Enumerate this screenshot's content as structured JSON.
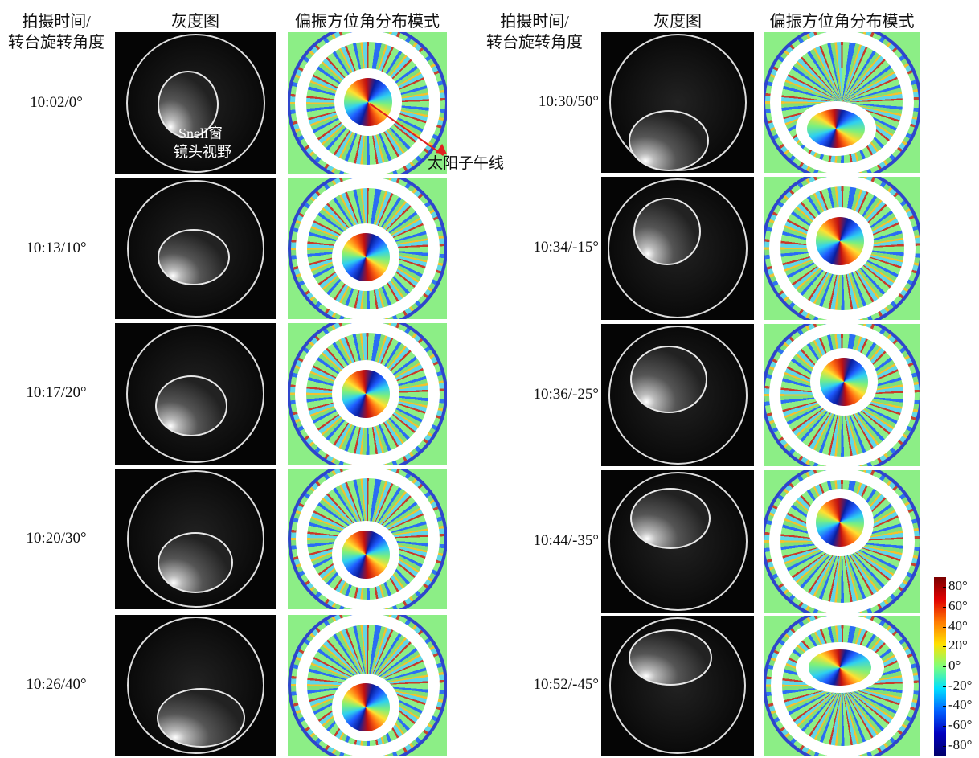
{
  "figure": {
    "groups": [
      {
        "headers": {
          "label_line1": "拍摄时间/",
          "label_line2": "转台旋转角度",
          "gray": "灰度图",
          "polar": "偏振方位角分布模式"
        },
        "rows": [
          "10:02/0°",
          "10:13/10°",
          "10:17/20°",
          "10:20/30°",
          "10:26/40°"
        ]
      },
      {
        "headers": {
          "label_line1": "拍摄时间/",
          "label_line2": "转台旋转角度",
          "gray": "灰度图",
          "polar": "偏振方位角分布模式"
        },
        "rows": [
          "10:30/50°",
          "10:34/-15°",
          "10:36/-25°",
          "10:44/-35°",
          "10:52/-45°"
        ]
      }
    ],
    "annotations": {
      "snell": "Snell窗",
      "lens": "镜头视野",
      "sun_meridian": "太阳子午线"
    },
    "colorbar": {
      "lim": [
        -90,
        90
      ],
      "ticks": [
        {
          "value": 80,
          "label": "80°"
        },
        {
          "value": 60,
          "label": "60°"
        },
        {
          "value": 40,
          "label": "40°"
        },
        {
          "value": 20,
          "label": "20°"
        },
        {
          "value": 0,
          "label": "0°"
        },
        {
          "value": -20,
          "label": "-20°"
        },
        {
          "value": -40,
          "label": "-40°"
        },
        {
          "value": -60,
          "label": "-60°"
        },
        {
          "value": -80,
          "label": "-80°"
        }
      ]
    }
  }
}
